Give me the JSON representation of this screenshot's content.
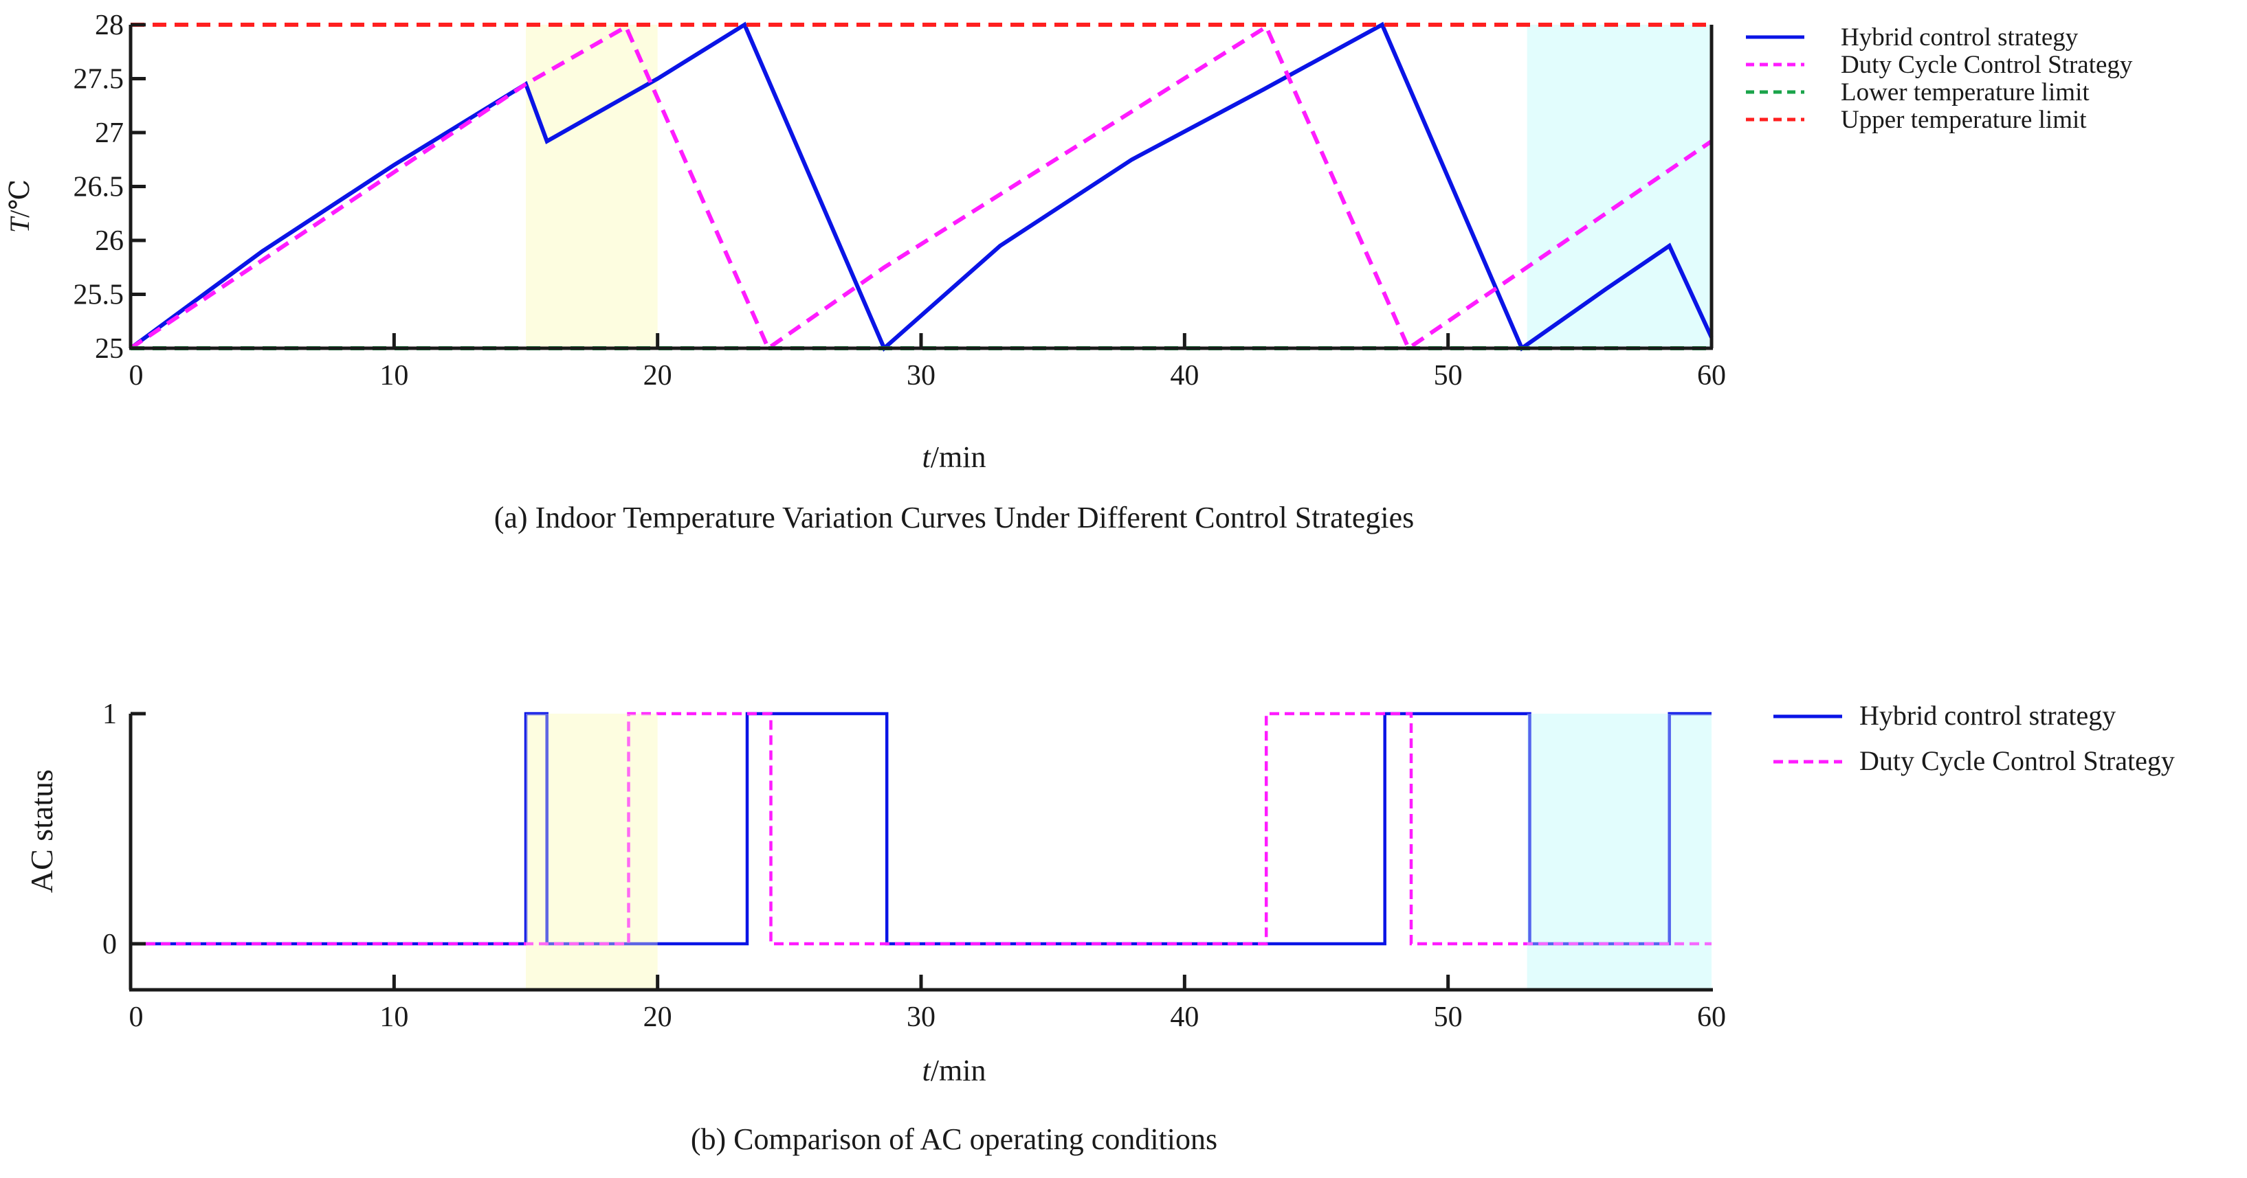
{
  "colors": {
    "hybrid": "#0a14e6",
    "duty": "#ff1cff",
    "lower_limit": "#1aa34a",
    "upper_limit": "#ff2020",
    "shade_yellow": "#fdfde0",
    "shade_cyan": "#e2fdfd",
    "axis": "#1a1a1a"
  },
  "chart_data": [
    {
      "type": "line",
      "caption": "(a) Indoor Temperature Variation Curves Under Different Control Strategies",
      "ylabel_italic": "T",
      "ylabel_unit": "/℃",
      "xlabel_italic": "t",
      "xlabel_unit": "/min",
      "xlim": [
        0,
        60
      ],
      "ylim": [
        25,
        28
      ],
      "xticks": [
        "0",
        "10",
        "20",
        "30",
        "40",
        "50",
        "60"
      ],
      "yticks": [
        "25",
        "25.5",
        "26",
        "26.5",
        "27",
        "27.5",
        "28"
      ],
      "shaded_regions": [
        {
          "from": 15,
          "to": 20,
          "color": "shade_yellow"
        },
        {
          "from": 53,
          "to": 60,
          "color": "shade_cyan"
        }
      ],
      "series": [
        {
          "name": "Hybrid control strategy",
          "style": "solid",
          "color": "hybrid",
          "x": [
            0,
            5,
            10,
            15,
            15.8,
            20,
            23.3,
            28.6,
            33,
            38,
            43,
            47.5,
            52.8,
            56,
            58.4,
            60
          ],
          "y": [
            25,
            25.9,
            26.7,
            27.45,
            26.92,
            27.5,
            28,
            25,
            25.95,
            26.75,
            27.4,
            28,
            25,
            25.55,
            25.95,
            25.1
          ]
        },
        {
          "name": "Duty Cycle Control Strategy",
          "style": "dashed",
          "color": "duty",
          "x": [
            0,
            15,
            18.8,
            24.2,
            28.6,
            43.1,
            48.5,
            60
          ],
          "y": [
            25,
            27.45,
            27.98,
            25,
            25.75,
            27.98,
            25,
            26.92
          ]
        },
        {
          "name": "Lower temperature limit",
          "style": "dashed",
          "color": "lower_limit",
          "x": [
            0,
            60
          ],
          "y": [
            25,
            25
          ]
        },
        {
          "name": "Upper temperature limit",
          "style": "dashed",
          "color": "upper_limit",
          "x": [
            0,
            60
          ],
          "y": [
            28,
            28
          ]
        }
      ]
    },
    {
      "type": "line",
      "caption": "(b) Comparison of AC operating conditions",
      "ylabel": "AC  status",
      "xlabel_italic": "t",
      "xlabel_unit": "/min",
      "xlim": [
        0,
        60
      ],
      "ylim": [
        -0.2,
        1.0
      ],
      "xticks": [
        "0",
        "10",
        "20",
        "30",
        "40",
        "50",
        "60"
      ],
      "yticks": [
        "0",
        "1"
      ],
      "ytick_values": [
        0,
        1
      ],
      "shaded_regions": [
        {
          "from": 15,
          "to": 20,
          "color": "shade_yellow"
        },
        {
          "from": 53,
          "to": 60,
          "color": "shade_cyan"
        }
      ],
      "series": [
        {
          "name": "Hybrid control strategy",
          "style": "solid",
          "color": "hybrid",
          "x": [
            0,
            15,
            15,
            15.8,
            15.8,
            23.4,
            23.4,
            28.7,
            28.7,
            47.6,
            47.6,
            53.1,
            53.1,
            58.4,
            58.4,
            60
          ],
          "y": [
            0,
            0,
            1,
            1,
            0,
            0,
            1,
            1,
            0,
            0,
            1,
            1,
            0,
            0,
            1,
            1
          ]
        },
        {
          "name": "Duty Cycle Control Strategy",
          "style": "dashed",
          "color": "duty",
          "x": [
            0,
            18.9,
            18.9,
            24.3,
            24.3,
            43.1,
            43.1,
            48.6,
            48.6,
            60
          ],
          "y": [
            0,
            0,
            1,
            1,
            0,
            0,
            1,
            1,
            0,
            0
          ]
        }
      ]
    }
  ]
}
